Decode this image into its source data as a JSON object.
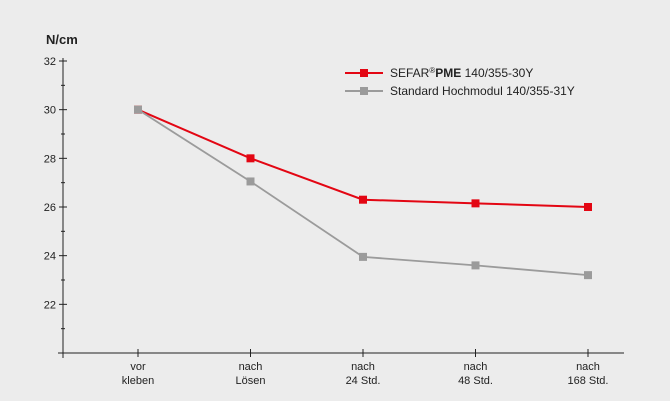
{
  "chart_data": {
    "type": "line",
    "ylabel": "N/cm",
    "categories": [
      "vor\nkleben",
      "nach\nLösen",
      "nach\n24 Std.",
      "nach\n48 Std.",
      "nach\n168 Std."
    ],
    "ylim": [
      20,
      32
    ],
    "yticks": [
      22,
      24,
      26,
      28,
      30,
      32
    ],
    "grid": false,
    "legend_position": "top-right",
    "series": [
      {
        "name_prefix": "SEFAR",
        "name_reg": "®",
        "name_bold": "PME",
        "name_suffix": " 140/355-30Y",
        "color": "#e30613",
        "marker": "square",
        "values": [
          30.0,
          28.0,
          26.3,
          26.15,
          26.0
        ]
      },
      {
        "name": "Standard Hochmodul 140/355-31Y",
        "color": "#9b9b9b",
        "marker": "square",
        "values": [
          30.0,
          27.05,
          23.95,
          23.6,
          23.2
        ]
      }
    ]
  }
}
